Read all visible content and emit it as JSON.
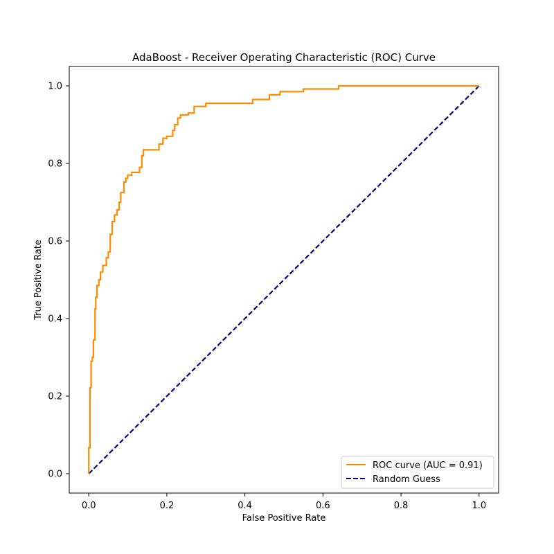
{
  "chart_data": {
    "type": "line",
    "title": "AdaBoost - Receiver Operating Characteristic (ROC) Curve",
    "xlabel": "False Positive Rate",
    "ylabel": "True Positive Rate",
    "xlim": [
      -0.05,
      1.05
    ],
    "ylim": [
      -0.05,
      1.05
    ],
    "x_ticks": [
      "0.0",
      "0.2",
      "0.4",
      "0.6",
      "0.8",
      "1.0"
    ],
    "y_ticks": [
      "0.0",
      "0.2",
      "0.4",
      "0.6",
      "0.8",
      "1.0"
    ],
    "grid": false,
    "legend_position": "lower-right",
    "series": [
      {
        "name": "ROC curve (AUC = 0.91)",
        "color": "#ff8c00",
        "style": "solid",
        "step": true,
        "x": [
          0.0,
          0.0,
          0.003,
          0.003,
          0.006,
          0.006,
          0.009,
          0.009,
          0.012,
          0.012,
          0.016,
          0.016,
          0.018,
          0.018,
          0.021,
          0.021,
          0.026,
          0.026,
          0.03,
          0.03,
          0.036,
          0.036,
          0.045,
          0.045,
          0.05,
          0.05,
          0.055,
          0.055,
          0.06,
          0.06,
          0.066,
          0.066,
          0.072,
          0.072,
          0.078,
          0.078,
          0.082,
          0.082,
          0.09,
          0.09,
          0.095,
          0.095,
          0.1,
          0.1,
          0.11,
          0.11,
          0.13,
          0.13,
          0.136,
          0.136,
          0.14,
          0.14,
          0.148,
          0.148,
          0.18,
          0.18,
          0.19,
          0.19,
          0.2,
          0.2,
          0.215,
          0.215,
          0.22,
          0.22,
          0.228,
          0.228,
          0.235,
          0.235,
          0.255,
          0.255,
          0.27,
          0.27,
          0.3,
          0.3,
          0.42,
          0.42,
          0.463,
          0.463,
          0.49,
          0.49,
          0.55,
          0.55,
          0.64,
          0.64,
          0.76,
          0.76,
          1.0
        ],
        "y": [
          0.0,
          0.067,
          0.067,
          0.222,
          0.222,
          0.29,
          0.29,
          0.3,
          0.3,
          0.345,
          0.345,
          0.425,
          0.425,
          0.455,
          0.455,
          0.485,
          0.485,
          0.5,
          0.5,
          0.52,
          0.52,
          0.537,
          0.537,
          0.557,
          0.557,
          0.572,
          0.572,
          0.617,
          0.617,
          0.65,
          0.65,
          0.667,
          0.667,
          0.68,
          0.68,
          0.7,
          0.7,
          0.725,
          0.725,
          0.752,
          0.752,
          0.762,
          0.762,
          0.77,
          0.77,
          0.777,
          0.777,
          0.79,
          0.79,
          0.82,
          0.82,
          0.835,
          0.835,
          0.835,
          0.835,
          0.85,
          0.85,
          0.865,
          0.865,
          0.87,
          0.87,
          0.885,
          0.885,
          0.9,
          0.9,
          0.917,
          0.917,
          0.925,
          0.925,
          0.93,
          0.93,
          0.947,
          0.947,
          0.955,
          0.955,
          0.965,
          0.965,
          0.977,
          0.977,
          0.985,
          0.985,
          0.992,
          0.992,
          1.0,
          1.0,
          1.0,
          1.0
        ]
      },
      {
        "name": "Random Guess",
        "color": "#000080",
        "style": "dashed",
        "x": [
          0.0,
          1.0
        ],
        "y": [
          0.0,
          1.0
        ]
      }
    ]
  }
}
